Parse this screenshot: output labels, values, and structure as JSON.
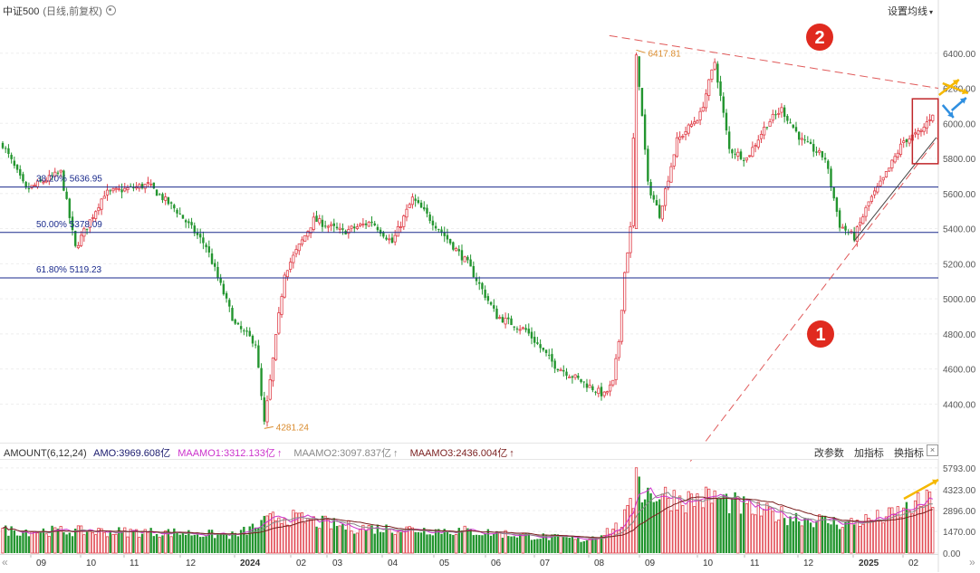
{
  "header": {
    "title": "中证500",
    "subtitle": "(日线,前复权)",
    "settings_label": "设置均线",
    "settings_caret": "▾"
  },
  "indicator_bar": {
    "name": "AMOUNT(6,12,24)",
    "amo": "AMO:3969.608亿",
    "maamo1": "MAAMO1:3312.133亿",
    "maamo2": "MAAMO2:3097.837亿",
    "maamo3": "MAAMO3:2436.004亿",
    "up_arrow": "↑",
    "buttons": [
      "改参数",
      "加指标",
      "换指标"
    ],
    "close": "×"
  },
  "colors": {
    "up": "#e0414b",
    "down": "#23952f",
    "fib_line": "#1a2a8c",
    "trend_line": "#e05a5a",
    "maamo1": "#cc33cc",
    "maamo2": "#888888",
    "maamo3": "#7a1e1e",
    "arrow_yellow": "#f5b800",
    "arrow_blue": "#2f8fe0",
    "badge_red": "#e02a1f"
  },
  "nav": {
    "left": "«",
    "right": "»"
  },
  "chart_data": [
    {
      "type": "candlestick",
      "title": "中证500",
      "ylim": [
        4180,
        6600
      ],
      "yticks": [
        4400,
        4600,
        4800,
        5000,
        5200,
        5400,
        5600,
        5800,
        6000,
        6200,
        6400
      ],
      "xlabels": [
        "09",
        "10",
        "11",
        "12",
        "2024",
        "02",
        "03",
        "04",
        "05",
        "06",
        "07",
        "08",
        "09",
        "10",
        "11",
        "12",
        "2025",
        "02"
      ],
      "anchors": [
        {
          "i": 0,
          "v": 5880
        },
        {
          "i": 8,
          "v": 5620
        },
        {
          "i": 20,
          "v": 5720
        },
        {
          "i": 25,
          "v": 5290
        },
        {
          "i": 35,
          "v": 5600
        },
        {
          "i": 50,
          "v": 5650
        },
        {
          "i": 60,
          "v": 5500
        },
        {
          "i": 70,
          "v": 5300
        },
        {
          "i": 80,
          "v": 4850
        },
        {
          "i": 87,
          "v": 4750
        },
        {
          "i": 90,
          "v": 4281
        },
        {
          "i": 97,
          "v": 5150
        },
        {
          "i": 107,
          "v": 5450
        },
        {
          "i": 117,
          "v": 5380
        },
        {
          "i": 127,
          "v": 5440
        },
        {
          "i": 134,
          "v": 5320
        },
        {
          "i": 141,
          "v": 5570
        },
        {
          "i": 150,
          "v": 5400
        },
        {
          "i": 160,
          "v": 5200
        },
        {
          "i": 170,
          "v": 4900
        },
        {
          "i": 180,
          "v": 4820
        },
        {
          "i": 190,
          "v": 4620
        },
        {
          "i": 200,
          "v": 4520
        },
        {
          "i": 207,
          "v": 4450
        },
        {
          "i": 210,
          "v": 4520
        },
        {
          "i": 212,
          "v": 4760
        },
        {
          "i": 214,
          "v": 5150
        },
        {
          "i": 216,
          "v": 5400
        },
        {
          "i": 218,
          "v": 6417.81
        },
        {
          "i": 222,
          "v": 5650
        },
        {
          "i": 226,
          "v": 5480
        },
        {
          "i": 232,
          "v": 5900
        },
        {
          "i": 240,
          "v": 6050
        },
        {
          "i": 245,
          "v": 6350
        },
        {
          "i": 250,
          "v": 5850
        },
        {
          "i": 256,
          "v": 5800
        },
        {
          "i": 263,
          "v": 6000
        },
        {
          "i": 268,
          "v": 6080
        },
        {
          "i": 275,
          "v": 5900
        },
        {
          "i": 283,
          "v": 5800
        },
        {
          "i": 288,
          "v": 5420
        },
        {
          "i": 293,
          "v": 5350
        },
        {
          "i": 298,
          "v": 5550
        },
        {
          "i": 303,
          "v": 5680
        },
        {
          "i": 310,
          "v": 5900
        },
        {
          "i": 316,
          "v": 5950
        },
        {
          "i": 320,
          "v": 6060
        }
      ],
      "count": 321,
      "annotations": [
        {
          "text": "4281.24",
          "value": 4281.24
        },
        {
          "text": "6417.81",
          "value": 6417.81
        }
      ],
      "fib_levels": [
        {
          "label": "38.20% 5636.95",
          "value": 5636.95
        },
        {
          "label": "50.00% 5378.09",
          "value": 5378.09
        },
        {
          "label": "61.80% 5119.23",
          "value": 5119.23
        }
      ],
      "badges": [
        "1",
        "2"
      ]
    },
    {
      "type": "bar",
      "title": "AMOUNT(6,12,24)",
      "ylim": [
        0,
        6400
      ],
      "yticks": [
        "5793.00",
        "4323.00",
        "2896.00",
        "1470.00",
        "0.00"
      ],
      "ytick_values": [
        5793,
        4323,
        2896,
        1470,
        0
      ],
      "levels": [
        {
          "i": 0,
          "v": 1550
        },
        {
          "i": 60,
          "v": 1400
        },
        {
          "i": 80,
          "v": 1200
        },
        {
          "i": 95,
          "v": 2500
        },
        {
          "i": 120,
          "v": 1750
        },
        {
          "i": 160,
          "v": 1500
        },
        {
          "i": 200,
          "v": 900
        },
        {
          "i": 212,
          "v": 1800
        },
        {
          "i": 220,
          "v": 4200
        },
        {
          "i": 235,
          "v": 3600
        },
        {
          "i": 245,
          "v": 3800
        },
        {
          "i": 260,
          "v": 2800
        },
        {
          "i": 290,
          "v": 2000
        },
        {
          "i": 305,
          "v": 2500
        },
        {
          "i": 320,
          "v": 3700
        }
      ]
    }
  ]
}
